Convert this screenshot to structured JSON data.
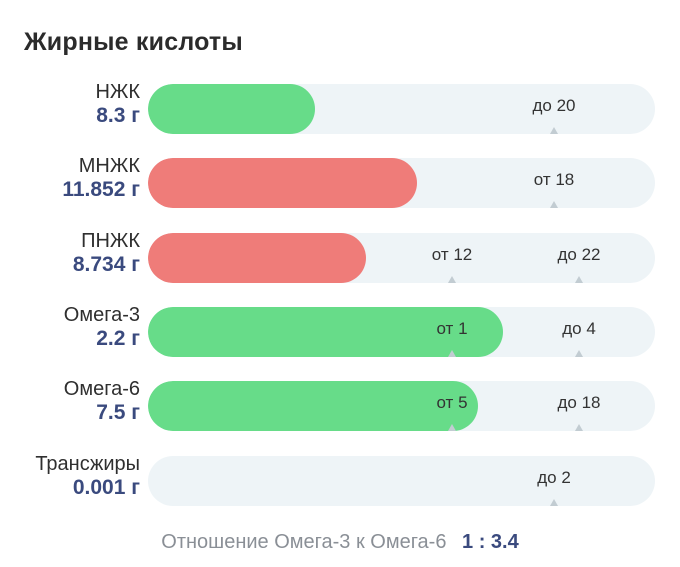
{
  "title": "Жирные кислоты",
  "rows": [
    {
      "name": "НЖК",
      "value": "8.3 г",
      "fill_fraction": 0.33,
      "status": "good",
      "markers": [
        {
          "text": "до 20",
          "position_fraction": 0.8
        }
      ]
    },
    {
      "name": "МНЖК",
      "value": "11.852 г",
      "fill_fraction": 0.53,
      "status": "bad",
      "markers": [
        {
          "text": "от 18",
          "position_fraction": 0.8
        }
      ]
    },
    {
      "name": "ПНЖК",
      "value": "8.734 г",
      "fill_fraction": 0.43,
      "status": "bad",
      "markers": [
        {
          "text": "от 12",
          "position_fraction": 0.6
        },
        {
          "text": "до 22",
          "position_fraction": 0.85
        }
      ]
    },
    {
      "name": "Омега-3",
      "value": "2.2 г",
      "fill_fraction": 0.7,
      "status": "good",
      "markers": [
        {
          "text": "от 1",
          "position_fraction": 0.6
        },
        {
          "text": "до 4",
          "position_fraction": 0.85
        }
      ]
    },
    {
      "name": "Омега-6",
      "value": "7.5 г",
      "fill_fraction": 0.65,
      "status": "good",
      "markers": [
        {
          "text": "от 5",
          "position_fraction": 0.6
        },
        {
          "text": "до 18",
          "position_fraction": 0.85
        }
      ]
    },
    {
      "name": "Трансжиры",
      "value": "0.001 г",
      "fill_fraction": 0.0,
      "status": "good",
      "markers": [
        {
          "text": "до 2",
          "position_fraction": 0.8
        }
      ]
    }
  ],
  "ratio": {
    "label": "Отношение Омега-3 к Омега-6",
    "value": "1 : 3.4"
  },
  "colors": {
    "good": "#67dc89",
    "bad": "#ef7c79",
    "track": "#eef4f7",
    "value_text": "#3a4a7e"
  }
}
